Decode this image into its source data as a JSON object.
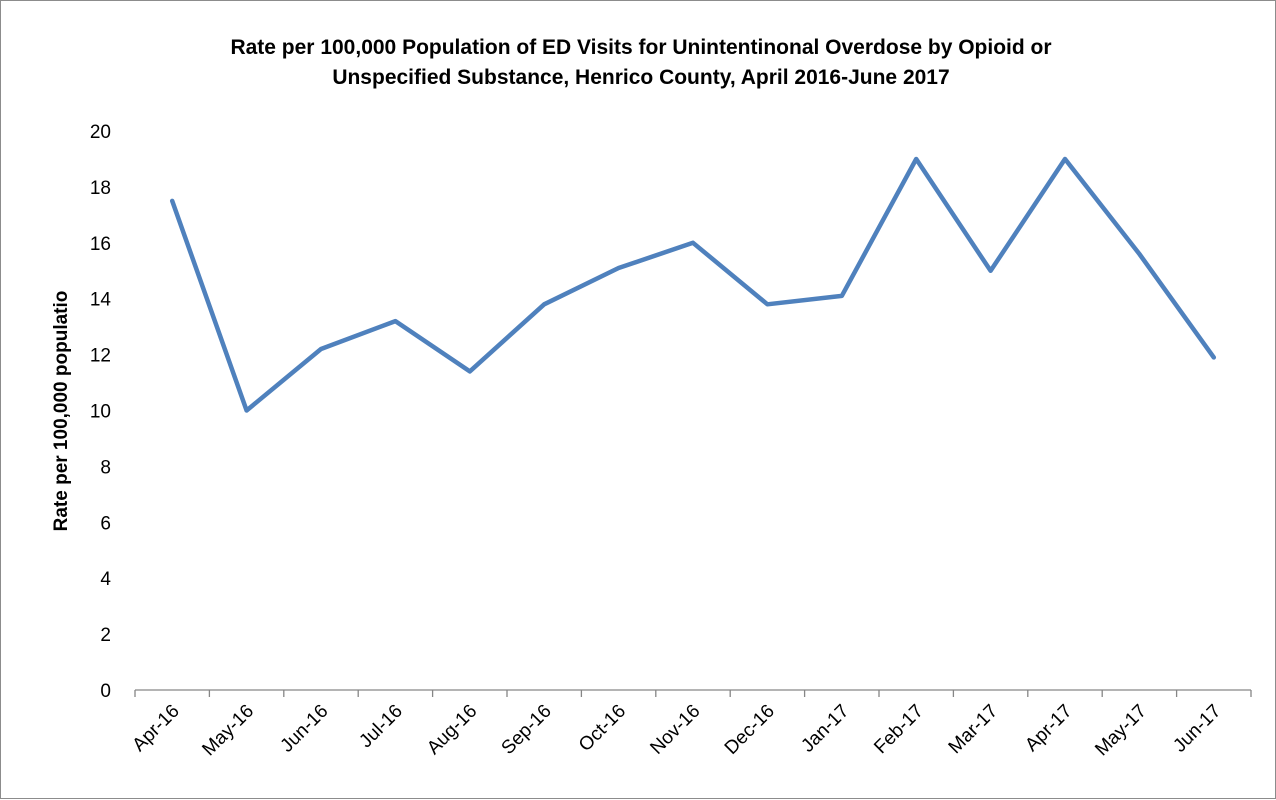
{
  "chart_data": {
    "type": "line",
    "title_lines": [
      "Rate per 100,000 Population of ED Visits for Unintentinonal Overdose by Opioid or",
      "Unspecified Substance, Henrico County, April 2016-June 2017"
    ],
    "xlabel": "",
    "ylabel": "Rate per 100,000 populatio",
    "ylim": [
      0,
      20
    ],
    "yticks": [
      0,
      2,
      4,
      6,
      8,
      10,
      12,
      14,
      16,
      18,
      20
    ],
    "categories": [
      "Apr-16",
      "May-16",
      "Jun-16",
      "Jul-16",
      "Aug-16",
      "Sep-16",
      "Oct-16",
      "Nov-16",
      "Dec-16",
      "Jan-17",
      "Feb-17",
      "Mar-17",
      "Apr-17",
      "May-17",
      "Jun-17"
    ],
    "series": [
      {
        "values": [
          17.5,
          10.0,
          12.2,
          13.2,
          11.4,
          13.8,
          15.1,
          16.0,
          13.8,
          14.1,
          19.0,
          15.0,
          19.0,
          15.6,
          11.9
        ],
        "color": "#4f81bd"
      }
    ],
    "grid": false,
    "legend": "none"
  }
}
